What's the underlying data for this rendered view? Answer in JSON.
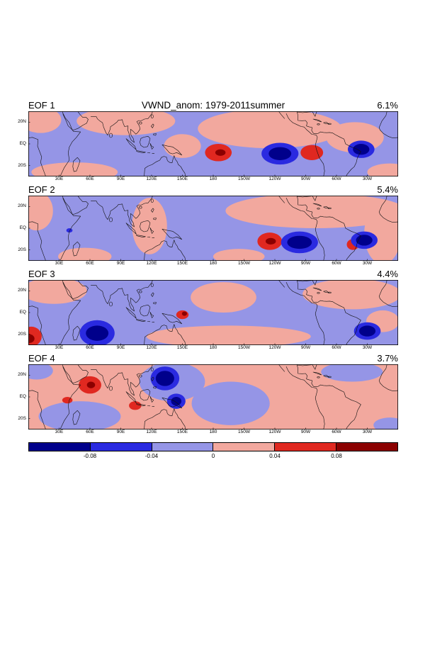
{
  "chart_data": {
    "type": "heatmap",
    "title": "VWND_anom: 1979-2011summer",
    "lon_range": [
      0,
      360
    ],
    "lat_range": [
      -30,
      30
    ],
    "lat_ticks": [
      {
        "label": "20N",
        "lat": 20
      },
      {
        "label": "EQ",
        "lat": 0
      },
      {
        "label": "20S",
        "lat": -20
      }
    ],
    "lon_ticks": [
      {
        "label": "30E",
        "lon": 30
      },
      {
        "label": "60E",
        "lon": 60
      },
      {
        "label": "90E",
        "lon": 90
      },
      {
        "label": "120E",
        "lon": 120
      },
      {
        "label": "150E",
        "lon": 150
      },
      {
        "label": "180",
        "lon": 180
      },
      {
        "label": "150W",
        "lon": 210
      },
      {
        "label": "120W",
        "lon": 240
      },
      {
        "label": "90W",
        "lon": 270
      },
      {
        "label": "60W",
        "lon": 300
      },
      {
        "label": "30W",
        "lon": 330
      }
    ],
    "levels": [
      -0.08,
      -0.04,
      0,
      0.04,
      0.08
    ],
    "colorbar_labels": [
      "-0.08",
      "-0.04",
      "0",
      "0.04",
      "0.08"
    ],
    "colors": {
      "neg2": "#00008b",
      "neg1": "#2a2ae0",
      "neg0": "#9595e6",
      "pos0": "#f2a89e",
      "pos1": "#e02820",
      "pos2": "#8b0000"
    },
    "colorbar_colors": [
      "#00008b",
      "#2a2ae0",
      "#9595e6",
      "#f2a89e",
      "#e02820",
      "#8b0000"
    ],
    "panels": [
      {
        "label": "EOF 1",
        "variance": "6.1%",
        "base": "neg0",
        "features": [
          [
            12,
            22,
            20,
            12,
            "pos0"
          ],
          [
            95,
            21,
            48,
            13,
            "pos0"
          ],
          [
            235,
            14,
            70,
            18,
            "pos0"
          ],
          [
            318,
            6,
            28,
            14,
            "pos0"
          ],
          [
            150,
            -2,
            18,
            11,
            "pos0"
          ],
          [
            45,
            -26,
            42,
            9,
            "pos0"
          ],
          [
            352,
            -26,
            22,
            8,
            "pos0"
          ],
          [
            185,
            -8,
            13,
            8,
            "pos1"
          ],
          [
            187,
            -8,
            5,
            3,
            "pos2"
          ],
          [
            245,
            -9,
            18,
            10,
            "neg1"
          ],
          [
            245,
            -9,
            11,
            6,
            "neg2"
          ],
          [
            276,
            -8,
            11,
            7,
            "pos1"
          ],
          [
            324,
            -5,
            13,
            8,
            "neg1"
          ],
          [
            324,
            -5,
            8,
            5,
            "neg2"
          ]
        ]
      },
      {
        "label": "EOF 2",
        "variance": "5.4%",
        "base": "neg0",
        "features": [
          [
            280,
            16,
            88,
            16,
            "pos0"
          ],
          [
            345,
            -5,
            18,
            28,
            "pos0"
          ],
          [
            8,
            16,
            16,
            18,
            "pos0"
          ],
          [
            118,
            2,
            17,
            26,
            "pos0"
          ],
          [
            55,
            -26,
            26,
            8,
            "pos0"
          ],
          [
            205,
            -26,
            25,
            7,
            "pos0"
          ],
          [
            235,
            -12,
            12,
            8,
            "pos1"
          ],
          [
            236,
            -12,
            5,
            3,
            "pos2"
          ],
          [
            264,
            -13,
            18,
            10,
            "neg1"
          ],
          [
            264,
            -13,
            12,
            6,
            "neg2"
          ],
          [
            316,
            -15,
            6,
            5,
            "pos1"
          ],
          [
            327,
            -11,
            13,
            8,
            "neg1"
          ],
          [
            327,
            -11,
            8,
            5,
            "neg2"
          ],
          [
            40,
            -2,
            3,
            2,
            "neg1"
          ]
        ]
      },
      {
        "label": "EOF 3",
        "variance": "4.4%",
        "base": "neg0",
        "features": [
          [
            25,
            20,
            32,
            12,
            "pos0"
          ],
          [
            315,
            17,
            48,
            14,
            "pos0"
          ],
          [
            190,
            14,
            32,
            14,
            "pos0"
          ],
          [
            195,
            -22,
            80,
            10,
            "pos0"
          ],
          [
            345,
            -8,
            16,
            10,
            "pos0"
          ],
          [
            3,
            -22,
            10,
            9,
            "pos1"
          ],
          [
            1,
            -24,
            5,
            4,
            "pos2"
          ],
          [
            67,
            -19,
            17,
            12,
            "neg1"
          ],
          [
            67,
            -19,
            11,
            7,
            "neg2"
          ],
          [
            150,
            -2,
            6,
            4,
            "pos1"
          ],
          [
            152,
            -1,
            2.5,
            2,
            "pos2"
          ],
          [
            330,
            -17,
            13,
            8,
            "neg1"
          ],
          [
            330,
            -17,
            8,
            5,
            "neg2"
          ]
        ]
      },
      {
        "label": "EOF 4",
        "variance": "3.7%",
        "base": "pos0",
        "features": [
          [
            50,
            -18,
            40,
            14,
            "neg0"
          ],
          [
            8,
            24,
            16,
            8,
            "neg0"
          ],
          [
            140,
            14,
            32,
            18,
            "neg0"
          ],
          [
            197,
            -6,
            38,
            20,
            "neg0"
          ],
          [
            315,
            23,
            30,
            9,
            "neg0"
          ],
          [
            352,
            -26,
            16,
            7,
            "neg0"
          ],
          [
            60,
            11,
            11,
            8,
            "pos1"
          ],
          [
            61,
            11,
            4,
            3,
            "pos2"
          ],
          [
            133,
            17,
            14,
            11,
            "neg1"
          ],
          [
            133,
            17,
            9,
            7,
            "neg2"
          ],
          [
            144,
            -4,
            9,
            7,
            "neg1"
          ],
          [
            144,
            -4,
            5,
            4,
            "neg2"
          ],
          [
            104,
            -8,
            6,
            4,
            "pos1"
          ],
          [
            38,
            -3,
            5,
            3,
            "pos1"
          ]
        ]
      }
    ]
  }
}
